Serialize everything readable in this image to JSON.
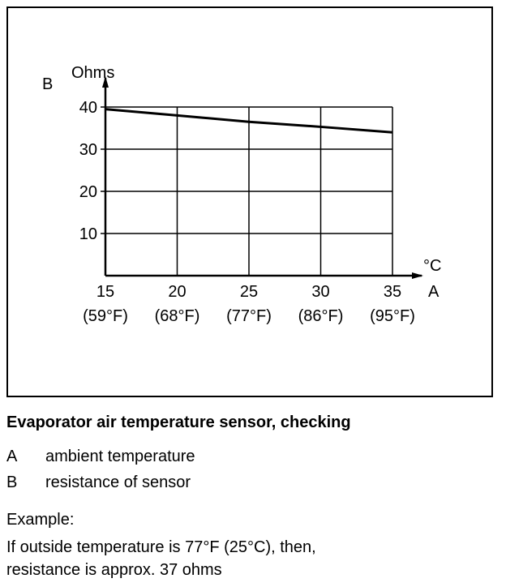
{
  "chart_data": {
    "type": "line",
    "xlabel": "A",
    "xunit": "°C",
    "ylabel": "B",
    "yunit": "Ohms",
    "x_ticks": [
      15,
      20,
      25,
      30,
      35
    ],
    "x_tick_f_labels": [
      "(59°F)",
      "(68°F)",
      "(77°F)",
      "(86°F)",
      "(95°F)"
    ],
    "y_ticks": [
      10,
      20,
      30,
      40
    ],
    "xlim": [
      15,
      35
    ],
    "ylim": [
      0,
      40
    ],
    "grid": true,
    "series": [
      {
        "x": [
          15,
          20,
          25,
          30,
          35
        ],
        "y": [
          39.5,
          38,
          36.5,
          35.3,
          34
        ]
      }
    ]
  },
  "caption": "Evaporator air temperature sensor, checking",
  "legend": [
    {
      "key": "A",
      "text": "ambient temperature"
    },
    {
      "key": "B",
      "text": "resistance of sensor"
    }
  ],
  "example": {
    "label": "Example:",
    "line1": "If outside temperature is 77°F (25°C), then,",
    "line2": "resistance is approx. 37 ohms"
  }
}
